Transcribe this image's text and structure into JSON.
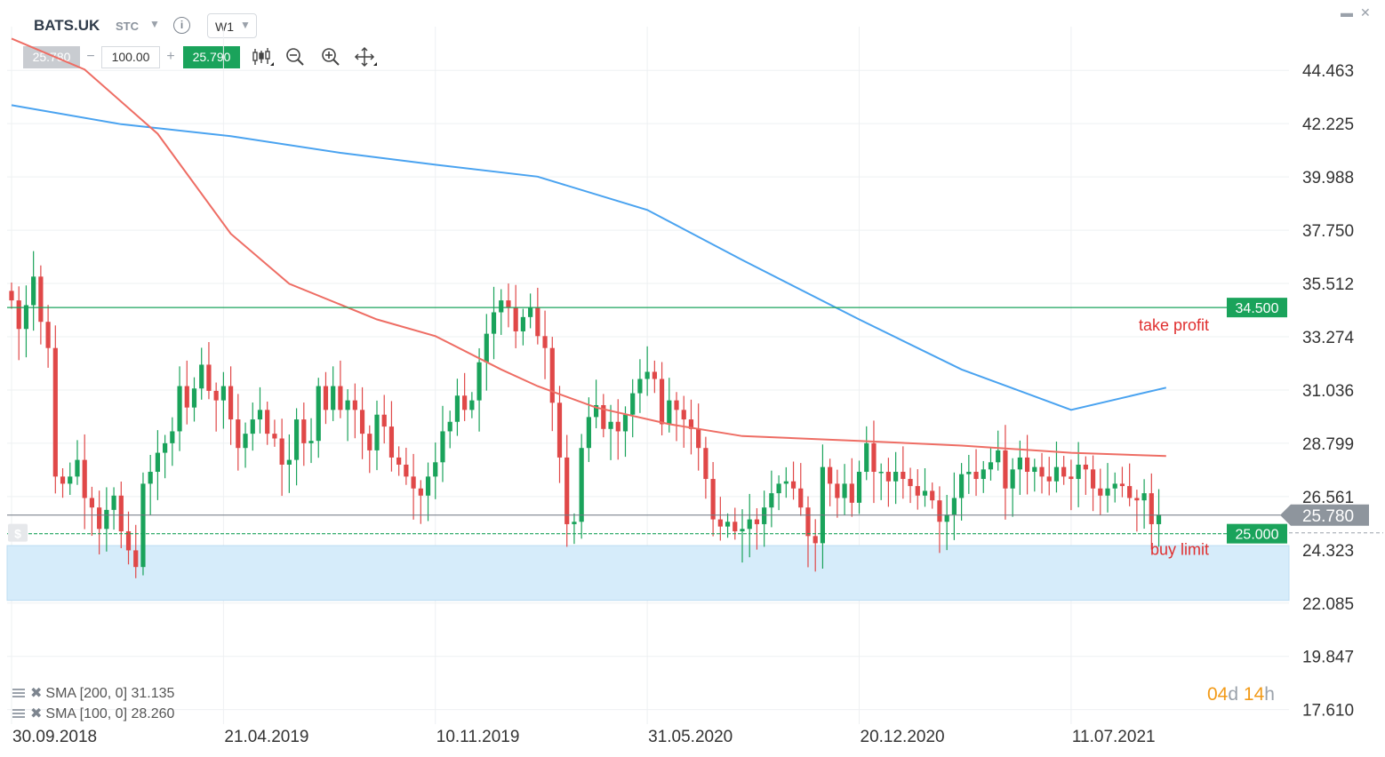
{
  "header": {
    "symbol": "BATS.UK",
    "market": "STC",
    "timeframe": "W1",
    "bid": "25.780",
    "quantity": "100.00",
    "ask": "25.790",
    "minus": "−",
    "plus": "+"
  },
  "legend": [
    {
      "label": "SMA [200, 0] 31.135"
    },
    {
      "label": "SMA [100, 0] 28.260"
    }
  ],
  "timer": {
    "days": "04",
    "days_unit": "d",
    "hours": "14",
    "hours_unit": "h"
  },
  "colors": {
    "up": "#1aa35b",
    "down": "#e04848",
    "sma200": "#4aa3f0",
    "sma100": "#ee6d64",
    "order_line": "#1aa35b",
    "zone": "#d6ecfa",
    "annotation": "#e03030",
    "price_tag": "#8e959d"
  },
  "chart_data": {
    "type": "candlestick",
    "symbol": "BATS.UK",
    "timeframe": "W1",
    "ylim": [
      17.0,
      46.3
    ],
    "y_ticks": [
      "44.463",
      "42.225",
      "39.988",
      "37.750",
      "35.512",
      "33.274",
      "31.036",
      "28.799",
      "26.561",
      "24.323",
      "22.085",
      "19.847",
      "17.610"
    ],
    "x_ticks": [
      {
        "label": "30.09.2018",
        "week": 0
      },
      {
        "label": "21.04.2019",
        "week": 29
      },
      {
        "label": "10.11.2019",
        "week": 58
      },
      {
        "label": "31.05.2020",
        "week": 87
      },
      {
        "label": "20.12.2020",
        "week": 116
      },
      {
        "label": "11.07.2021",
        "week": 145
      }
    ],
    "candles_close": [
      34.8,
      33.6,
      34.6,
      35.8,
      33.9,
      32.8,
      27.4,
      27.1,
      27.4,
      28.1,
      26.5,
      26.1,
      25.2,
      26.0,
      26.6,
      25.1,
      24.3,
      23.6,
      27.1,
      27.6,
      28.4,
      28.8,
      29.3,
      31.2,
      30.3,
      31.1,
      32.1,
      31.0,
      30.6,
      31.2,
      29.8,
      28.6,
      29.2,
      29.8,
      30.2,
      29.2,
      29.0,
      27.9,
      28.1,
      29.8,
      28.8,
      28.9,
      31.2,
      30.2,
      31.2,
      30.2,
      30.6,
      30.2,
      29.2,
      28.5,
      30.0,
      29.5,
      28.2,
      27.9,
      27.4,
      26.9,
      26.6,
      27.4,
      28.0,
      29.3,
      29.7,
      30.8,
      30.2,
      30.6,
      32.2,
      33.4,
      34.3,
      34.8,
      34.5,
      33.5,
      34.1,
      34.5,
      33.3,
      32.8,
      30.5,
      28.2,
      25.4,
      25.5,
      28.6,
      29.9,
      30.4,
      29.4,
      29.7,
      29.3,
      30.0,
      30.9,
      31.5,
      31.8,
      31.5,
      29.6,
      30.6,
      30.2,
      29.8,
      29.4,
      28.6,
      27.3,
      25.6,
      25.3,
      25.5,
      25.1,
      25.2,
      25.6,
      25.4,
      26.1,
      26.7,
      27.1,
      27.2,
      26.9,
      26.1,
      24.9,
      24.6,
      27.8,
      27.1,
      26.5,
      27.1,
      26.3,
      27.6,
      28.8,
      27.6,
      27.6,
      27.2,
      27.6,
      27.3,
      27.0,
      26.6,
      26.8,
      26.4,
      25.5,
      25.8,
      26.5,
      27.5,
      27.6,
      27.3,
      27.7,
      28.0,
      28.5,
      26.9,
      27.7,
      28.2,
      27.6,
      27.8,
      27.4,
      27.2,
      27.8,
      27.4,
      27.3,
      27.9,
      27.7,
      26.9,
      26.6,
      26.9,
      27.1,
      27.0,
      26.5,
      26.4,
      26.7,
      25.4,
      25.8
    ],
    "sma200": {
      "week": [
        0,
        15,
        30,
        45,
        58,
        72,
        87,
        100,
        116,
        130,
        145,
        158
      ],
      "value": [
        43.0,
        42.2,
        41.7,
        41.0,
        40.5,
        40.0,
        38.6,
        36.5,
        34.0,
        31.9,
        30.2,
        31.135
      ]
    },
    "sma100": {
      "week": [
        0,
        10,
        20,
        30,
        38,
        50,
        58,
        67,
        72,
        80,
        90,
        100,
        116,
        130,
        145,
        158
      ],
      "value": [
        45.8,
        44.5,
        41.8,
        37.6,
        35.5,
        34.0,
        33.3,
        31.9,
        31.2,
        30.3,
        29.6,
        29.1,
        28.9,
        28.7,
        28.4,
        28.26
      ]
    },
    "horizontal_lines": [
      {
        "label": "34.500",
        "value": 34.5,
        "annotation": "take profit"
      },
      {
        "label": "25.000",
        "value": 25.0,
        "annotation": "buy limit"
      },
      {
        "label": "25.780",
        "value": 25.78
      }
    ],
    "zone": {
      "from": 22.2,
      "to": 24.5
    }
  }
}
